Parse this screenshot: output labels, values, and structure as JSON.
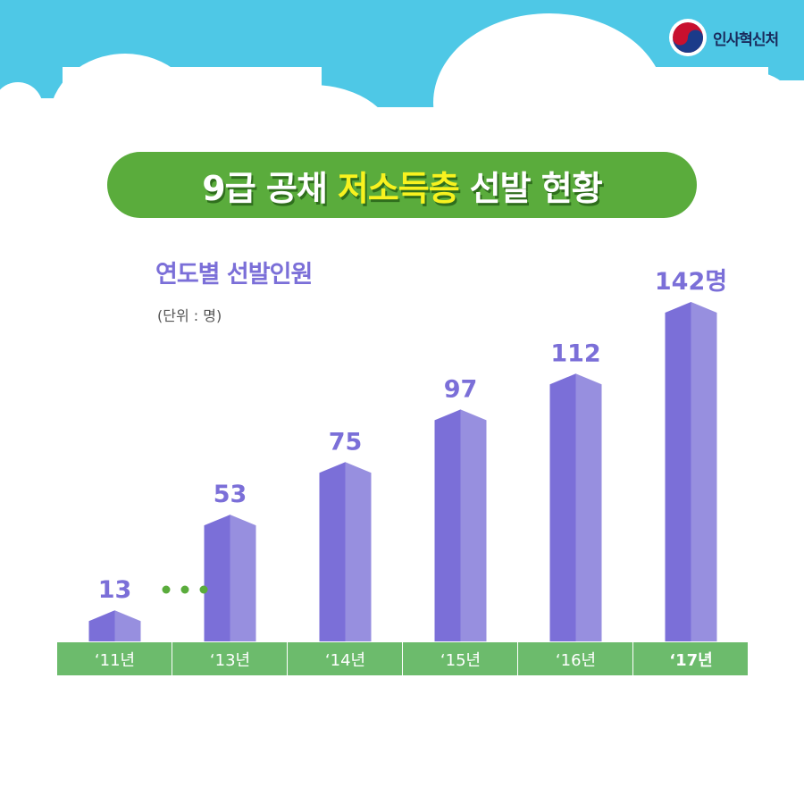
{
  "header": {
    "logo_text": "인사혁신처",
    "title_part1": "9급 공채",
    "title_highlight": "저소득층",
    "title_part2": "선발 현황"
  },
  "colors": {
    "sky": "#4ec8e6",
    "title_pill": "#5aac3c",
    "highlight": "#f8f21f",
    "bar_front": "#7b6fd8",
    "bar_side": "#978fdf",
    "axis_band": "#6cbb6c"
  },
  "chart_data": {
    "type": "bar",
    "title": "연도별 선발인원",
    "unit_note": "(단위 : 명)",
    "categories": [
      "‘11년",
      "‘13년",
      "‘14년",
      "‘15년",
      "‘16년",
      "‘17년"
    ],
    "value_labels": [
      "13",
      "53",
      "75",
      "97",
      "112",
      "142명"
    ],
    "values": [
      13,
      53,
      75,
      97,
      112,
      142
    ],
    "gap_marker_after_index": 0,
    "highlight_index": 5,
    "grid": false,
    "legend": "none"
  }
}
